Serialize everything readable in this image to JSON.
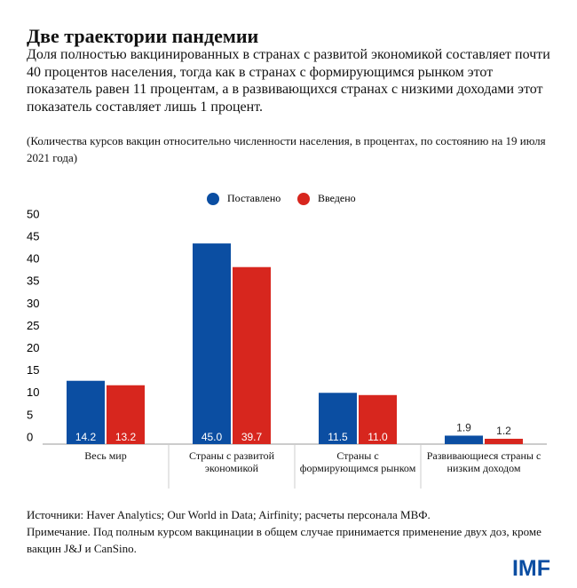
{
  "chart_data": {
    "type": "bar",
    "title": "Две траектории пандемии",
    "subtitle": "Доля полностью вакцинированных в странах с развитой экономикой составляет почти 40 процентов населения, тогда как в странах с формирующимся рынком этот показатель равен 11 процентам, а в развивающихся странах с низкими доходами этот показатель составляет лишь 1 процент.",
    "note": "(Количества курсов вакцин относительно численности населения, в процентах, по состоянию на 19 июля 2021 года)",
    "categories": [
      "Весь мир",
      "Страны с развитой экономикой",
      "Страны с формирующимся рынком",
      "Развивающиеся страны с низким доходом"
    ],
    "series": [
      {
        "name": "Поставлено",
        "color": "#0b4ea2",
        "values": [
          14.2,
          45.0,
          11.5,
          1.9
        ],
        "value_labels": [
          "14.2",
          "45.0",
          "11.5",
          "1.9"
        ]
      },
      {
        "name": "Введено",
        "color": "#d7261e",
        "values": [
          13.2,
          39.7,
          11.0,
          1.2
        ],
        "value_labels": [
          "13.2",
          "39.7",
          "11.0",
          "1.2"
        ]
      }
    ],
    "ylim": [
      0,
      50
    ],
    "yticks": [
      0,
      5,
      10,
      15,
      20,
      25,
      30,
      35,
      40,
      45,
      50
    ],
    "sources": "Источники: Haver Analytics; Our World in Data; Airfinity; расчеты персонала МВФ.",
    "footnote": "Примечание. Под полным курсом вакцинации в общем случае принимается применение двух доз, кроме вакцин J&J и CanSino.",
    "logo": "IMF"
  }
}
